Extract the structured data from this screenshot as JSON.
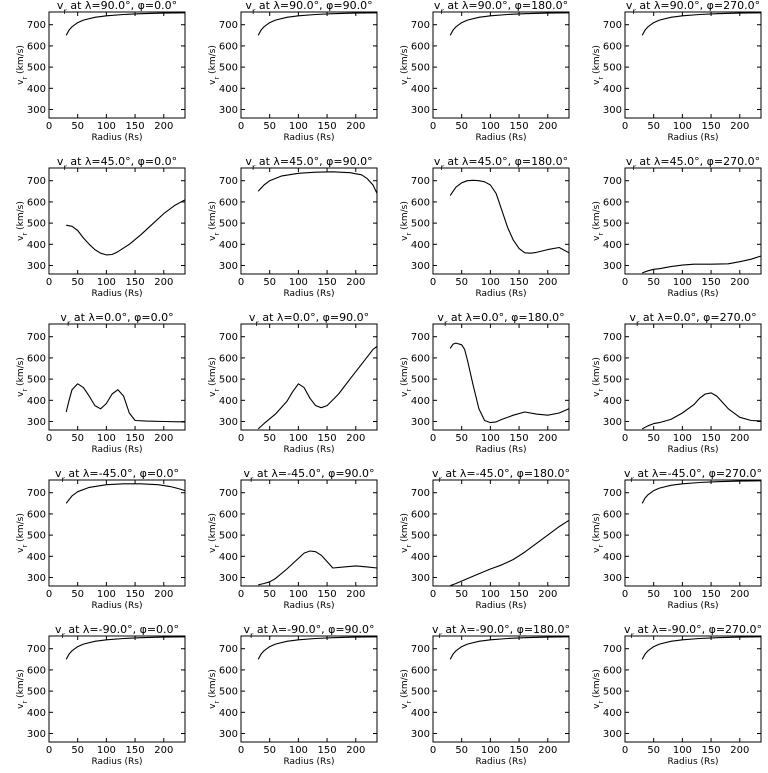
{
  "figure": {
    "xlabel": "Radius (Rs)",
    "ylabel": "v_r (km/s)",
    "xlim": [
      0,
      237
    ],
    "ylim": [
      260,
      760
    ],
    "xticks": [
      0,
      50,
      100,
      150,
      200
    ],
    "yticks": [
      300,
      400,
      500,
      600,
      700
    ]
  },
  "chart_data": [
    {
      "type": "line",
      "title": "v_r at λ=90.0°, φ=0.0°",
      "xlabel": "Radius (Rs)",
      "ylabel": "v_r (km/s)",
      "xlim": [
        0,
        237
      ],
      "ylim": [
        260,
        760
      ],
      "x": [
        30,
        35,
        40,
        50,
        60,
        80,
        100,
        130,
        160,
        200,
        237
      ],
      "y": [
        650,
        675,
        690,
        710,
        722,
        735,
        742,
        748,
        752,
        755,
        756
      ]
    },
    {
      "type": "line",
      "title": "v_r at λ=90.0°, φ=90.0°",
      "xlabel": "Radius (Rs)",
      "ylabel": "v_r (km/s)",
      "xlim": [
        0,
        237
      ],
      "ylim": [
        260,
        760
      ],
      "x": [
        30,
        35,
        40,
        50,
        60,
        80,
        100,
        130,
        160,
        200,
        237
      ],
      "y": [
        650,
        675,
        690,
        710,
        722,
        735,
        742,
        748,
        752,
        755,
        756
      ]
    },
    {
      "type": "line",
      "title": "v_r at λ=90.0°, φ=180.0°",
      "xlabel": "Radius (Rs)",
      "ylabel": "v_r (km/s)",
      "xlim": [
        0,
        237
      ],
      "ylim": [
        260,
        760
      ],
      "x": [
        30,
        35,
        40,
        50,
        60,
        80,
        100,
        130,
        160,
        200,
        237
      ],
      "y": [
        650,
        675,
        690,
        710,
        722,
        735,
        742,
        748,
        752,
        755,
        756
      ]
    },
    {
      "type": "line",
      "title": "v_r at λ=90.0°, φ=270.0°",
      "xlabel": "Radius (Rs)",
      "ylabel": "v_r (km/s)",
      "xlim": [
        0,
        237
      ],
      "ylim": [
        260,
        760
      ],
      "x": [
        30,
        35,
        40,
        50,
        60,
        80,
        100,
        130,
        160,
        200,
        237
      ],
      "y": [
        650,
        675,
        690,
        710,
        722,
        735,
        742,
        748,
        752,
        755,
        756
      ]
    },
    {
      "type": "line",
      "title": "v_r at λ=45.0°, φ=0.0°",
      "xlabel": "Radius (Rs)",
      "ylabel": "v_r (km/s)",
      "xlim": [
        0,
        237
      ],
      "ylim": [
        260,
        760
      ],
      "x": [
        30,
        40,
        50,
        60,
        70,
        80,
        90,
        100,
        110,
        120,
        140,
        160,
        180,
        200,
        220,
        237
      ],
      "y": [
        490,
        485,
        465,
        430,
        400,
        375,
        358,
        350,
        352,
        365,
        400,
        445,
        495,
        545,
        585,
        610
      ]
    },
    {
      "type": "line",
      "title": "v_r at λ=45.0°, φ=90.0°",
      "xlabel": "Radius (Rs)",
      "ylabel": "v_r (km/s)",
      "xlim": [
        0,
        237
      ],
      "ylim": [
        260,
        760
      ],
      "x": [
        30,
        40,
        50,
        70,
        100,
        130,
        160,
        190,
        210,
        220,
        230,
        237
      ],
      "y": [
        650,
        680,
        700,
        722,
        735,
        740,
        742,
        738,
        728,
        710,
        680,
        640
      ]
    },
    {
      "type": "line",
      "title": "v_r at λ=45.0°, φ=180.0°",
      "xlabel": "Radius (Rs)",
      "ylabel": "v_r (km/s)",
      "xlim": [
        0,
        237
      ],
      "ylim": [
        260,
        760
      ],
      "x": [
        30,
        40,
        50,
        60,
        70,
        80,
        90,
        100,
        110,
        120,
        130,
        140,
        150,
        160,
        170,
        180,
        200,
        220,
        237
      ],
      "y": [
        630,
        670,
        690,
        700,
        702,
        700,
        695,
        680,
        640,
        560,
        480,
        420,
        380,
        360,
        358,
        362,
        375,
        385,
        360
      ]
    },
    {
      "type": "line",
      "title": "v_r at λ=45.0°, φ=270.0°",
      "xlabel": "Radius (Rs)",
      "ylabel": "v_r (km/s)",
      "xlim": [
        0,
        237
      ],
      "ylim": [
        260,
        760
      ],
      "x": [
        30,
        40,
        50,
        60,
        80,
        100,
        120,
        150,
        180,
        200,
        220,
        237
      ],
      "y": [
        265,
        275,
        282,
        285,
        295,
        302,
        306,
        306,
        308,
        318,
        330,
        345
      ]
    },
    {
      "type": "line",
      "title": "v_r at λ=0.0°, φ=0.0°",
      "xlabel": "Radius (Rs)",
      "ylabel": "v_r (km/s)",
      "xlim": [
        0,
        237
      ],
      "ylim": [
        260,
        760
      ],
      "x": [
        30,
        35,
        40,
        50,
        60,
        70,
        80,
        90,
        100,
        110,
        120,
        130,
        140,
        150,
        170,
        200,
        237
      ],
      "y": [
        345,
        400,
        450,
        478,
        460,
        420,
        375,
        360,
        385,
        430,
        450,
        420,
        340,
        305,
        302,
        300,
        298
      ]
    },
    {
      "type": "line",
      "title": "v_r at λ=0.0°, φ=90.0°",
      "xlabel": "Radius (Rs)",
      "ylabel": "v_r (km/s)",
      "xlim": [
        0,
        237
      ],
      "ylim": [
        260,
        760
      ],
      "x": [
        30,
        40,
        60,
        80,
        90,
        100,
        110,
        120,
        130,
        140,
        150,
        170,
        190,
        210,
        230,
        237
      ],
      "y": [
        265,
        290,
        335,
        395,
        440,
        478,
        460,
        410,
        375,
        365,
        375,
        430,
        500,
        570,
        640,
        655
      ]
    },
    {
      "type": "line",
      "title": "v_r at λ=0.0°, φ=180.0°",
      "xlabel": "Radius (Rs)",
      "ylabel": "v_r (km/s)",
      "xlim": [
        0,
        237
      ],
      "ylim": [
        260,
        760
      ],
      "x": [
        30,
        35,
        40,
        50,
        55,
        60,
        70,
        80,
        90,
        100,
        110,
        120,
        140,
        160,
        180,
        200,
        220,
        237
      ],
      "y": [
        645,
        665,
        670,
        662,
        640,
        590,
        470,
        360,
        305,
        295,
        298,
        310,
        330,
        345,
        335,
        330,
        340,
        360
      ]
    },
    {
      "type": "line",
      "title": "v_r at λ=0.0°, φ=270.0°",
      "xlabel": "Radius (Rs)",
      "ylabel": "v_r (km/s)",
      "xlim": [
        0,
        237
      ],
      "ylim": [
        260,
        760
      ],
      "x": [
        30,
        40,
        50,
        60,
        80,
        100,
        120,
        130,
        140,
        150,
        160,
        180,
        200,
        220,
        237
      ],
      "y": [
        265,
        280,
        290,
        295,
        310,
        340,
        380,
        410,
        430,
        435,
        420,
        360,
        320,
        305,
        303
      ]
    },
    {
      "type": "line",
      "title": "v_r at λ=-45.0°, φ=0.0°",
      "xlabel": "Radius (Rs)",
      "ylabel": "v_r (km/s)",
      "xlim": [
        0,
        237
      ],
      "ylim": [
        260,
        760
      ],
      "x": [
        30,
        40,
        50,
        70,
        100,
        130,
        160,
        190,
        210,
        225,
        237
      ],
      "y": [
        650,
        685,
        705,
        725,
        738,
        742,
        742,
        738,
        730,
        720,
        710
      ]
    },
    {
      "type": "line",
      "title": "v_r at λ=-45.0°, φ=90.0°",
      "xlabel": "Radius (Rs)",
      "ylabel": "v_r (km/s)",
      "xlim": [
        0,
        237
      ],
      "ylim": [
        260,
        760
      ],
      "x": [
        30,
        40,
        50,
        60,
        80,
        100,
        110,
        120,
        130,
        140,
        150,
        160,
        180,
        200,
        220,
        237
      ],
      "y": [
        265,
        272,
        280,
        295,
        340,
        390,
        415,
        425,
        422,
        405,
        375,
        345,
        350,
        355,
        350,
        345
      ]
    },
    {
      "type": "line",
      "title": "v_r at λ=-45.0°, φ=180.0°",
      "xlabel": "Radius (Rs)",
      "ylabel": "v_r (km/s)",
      "xlim": [
        0,
        237
      ],
      "ylim": [
        260,
        760
      ],
      "x": [
        30,
        40,
        60,
        80,
        100,
        120,
        140,
        160,
        180,
        200,
        220,
        237
      ],
      "y": [
        262,
        272,
        295,
        318,
        340,
        360,
        385,
        420,
        460,
        500,
        540,
        570
      ]
    },
    {
      "type": "line",
      "title": "v_r at λ=-45.0°, φ=270.0°",
      "xlabel": "Radius (Rs)",
      "ylabel": "v_r (km/s)",
      "xlim": [
        0,
        237
      ],
      "ylim": [
        260,
        760
      ],
      "x": [
        30,
        35,
        40,
        50,
        60,
        80,
        100,
        130,
        160,
        200,
        237
      ],
      "y": [
        650,
        675,
        690,
        710,
        722,
        735,
        742,
        748,
        752,
        755,
        756
      ]
    },
    {
      "type": "line",
      "title": "v_r at λ=-90.0°, φ=0.0°",
      "xlabel": "Radius (Rs)",
      "ylabel": "v_r (km/s)",
      "xlim": [
        0,
        237
      ],
      "ylim": [
        260,
        760
      ],
      "x": [
        30,
        35,
        40,
        50,
        60,
        80,
        100,
        130,
        160,
        200,
        237
      ],
      "y": [
        650,
        675,
        690,
        710,
        722,
        735,
        742,
        748,
        752,
        755,
        756
      ]
    },
    {
      "type": "line",
      "title": "v_r at λ=-90.0°, φ=90.0°",
      "xlabel": "Radius (Rs)",
      "ylabel": "v_r (km/s)",
      "xlim": [
        0,
        237
      ],
      "ylim": [
        260,
        760
      ],
      "x": [
        30,
        35,
        40,
        50,
        60,
        80,
        100,
        130,
        160,
        200,
        237
      ],
      "y": [
        650,
        675,
        690,
        710,
        722,
        735,
        742,
        748,
        752,
        755,
        756
      ]
    },
    {
      "type": "line",
      "title": "v_r at λ=-90.0°, φ=180.0°",
      "xlabel": "Radius (Rs)",
      "ylabel": "v_r (km/s)",
      "xlim": [
        0,
        237
      ],
      "ylim": [
        260,
        760
      ],
      "x": [
        30,
        35,
        40,
        50,
        60,
        80,
        100,
        130,
        160,
        200,
        237
      ],
      "y": [
        650,
        675,
        690,
        710,
        722,
        735,
        742,
        748,
        752,
        755,
        756
      ]
    },
    {
      "type": "line",
      "title": "v_r at λ=-90.0°, φ=270.0°",
      "xlabel": "Radius (Rs)",
      "ylabel": "v_r (km/s)",
      "xlim": [
        0,
        237
      ],
      "ylim": [
        260,
        760
      ],
      "x": [
        30,
        35,
        40,
        50,
        60,
        80,
        100,
        130,
        160,
        200,
        237
      ],
      "y": [
        650,
        675,
        690,
        710,
        722,
        735,
        742,
        748,
        752,
        755,
        756
      ]
    }
  ]
}
